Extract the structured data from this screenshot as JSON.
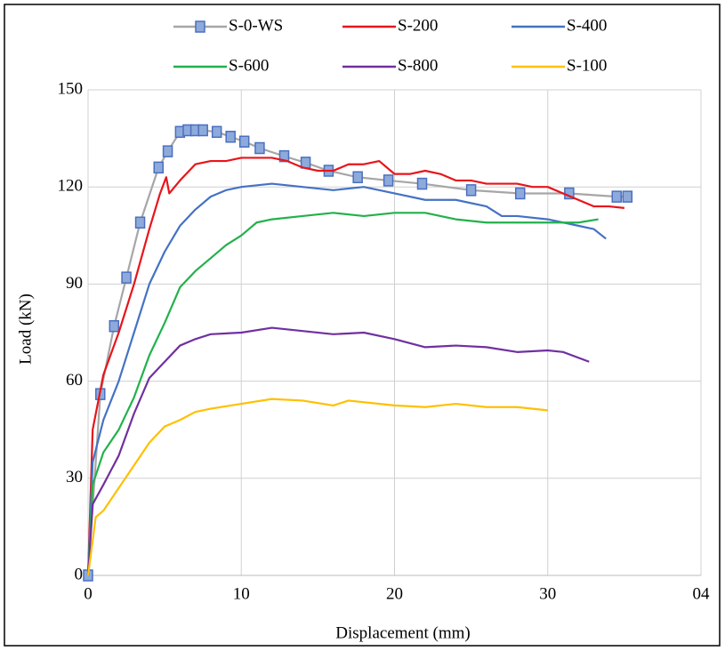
{
  "chart_data": {
    "type": "line",
    "xlabel": "Displacement (mm)",
    "ylabel": "Load (kN)",
    "xlim": [
      0,
      40
    ],
    "ylim": [
      0,
      150
    ],
    "xticks": [
      0,
      10,
      20,
      30,
      {
        "value": 40,
        "label": "04"
      }
    ],
    "yticks": [
      0,
      30,
      60,
      90,
      120,
      150
    ],
    "grid": true,
    "series": [
      {
        "name": "S-0-WS",
        "color": "#a6a6a6",
        "marker": "square",
        "marker_color": "#8eaadb",
        "x": [
          0,
          0.8,
          1.7,
          2.5,
          3.4,
          4.6,
          5.2,
          6,
          6.5,
          7,
          7.5,
          8.4,
          9.3,
          10.2,
          11.2,
          12.8,
          14.2,
          15.7,
          17.6,
          19.6,
          21.8,
          25,
          28.2,
          31.4,
          34.5,
          35.2
        ],
        "values": [
          0,
          56,
          77,
          92,
          109,
          126,
          131,
          137,
          137.5,
          137.5,
          137.5,
          137,
          135.5,
          134,
          132,
          129.5,
          127.5,
          125,
          123,
          122,
          121,
          119,
          118,
          118,
          117,
          117
        ]
      },
      {
        "name": "S-200",
        "color": "#e8141b",
        "x": [
          0,
          0.3,
          1,
          2,
          3,
          4,
          4.7,
          5.1,
          5.3,
          6,
          7,
          8,
          9,
          10,
          11,
          12,
          13,
          14,
          15,
          16,
          17,
          18,
          19,
          20,
          21,
          22,
          23,
          24,
          25,
          26,
          27,
          28,
          29,
          30,
          31,
          32,
          33,
          34,
          35
        ],
        "values": [
          0,
          45,
          62,
          75,
          90,
          107,
          118,
          123,
          118,
          122,
          127,
          128,
          128,
          129,
          129,
          129,
          128,
          126,
          125,
          125,
          127,
          127,
          128,
          124,
          124,
          125,
          124,
          122,
          122,
          121,
          121,
          121,
          120,
          120,
          118,
          116,
          114,
          114,
          113.5
        ]
      },
      {
        "name": "S-400",
        "color": "#4472c4",
        "x": [
          0,
          0.3,
          1,
          2,
          3,
          4,
          5,
          6,
          7,
          8,
          9,
          10,
          12,
          14,
          16,
          18,
          20,
          22,
          24,
          26,
          27,
          28,
          30,
          31,
          32,
          33,
          33.8
        ],
        "values": [
          0,
          35,
          48,
          60,
          75,
          90,
          100,
          108,
          113,
          117,
          119,
          120,
          121,
          120,
          119,
          120,
          118,
          116,
          116,
          114,
          111,
          111,
          110,
          109,
          108,
          107,
          104
        ]
      },
      {
        "name": "S-600",
        "color": "#22b14c",
        "x": [
          0,
          0.3,
          1,
          2,
          3,
          4,
          5,
          6,
          7,
          8,
          9,
          10,
          11,
          12,
          14,
          16,
          18,
          20,
          22,
          24,
          26,
          28,
          30,
          32,
          33.3
        ],
        "values": [
          0,
          28,
          38,
          45,
          55,
          68,
          78,
          89,
          94,
          98,
          102,
          105,
          109,
          110,
          111,
          112,
          111,
          112,
          112,
          110,
          109,
          109,
          109,
          109,
          110
        ]
      },
      {
        "name": "S-800",
        "color": "#7030a0",
        "x": [
          0,
          0.3,
          1,
          2,
          3,
          4,
          5,
          6,
          7,
          8,
          10,
          12,
          14,
          16,
          18,
          20,
          22,
          24,
          26,
          28,
          30,
          31,
          32.7
        ],
        "values": [
          0,
          22,
          28,
          37,
          50,
          61,
          66,
          71,
          73,
          74.5,
          75,
          76.5,
          75.5,
          74.5,
          75,
          73,
          70.5,
          71,
          70.5,
          69,
          69.5,
          69,
          66
        ]
      },
      {
        "name": "S-100",
        "color": "#ffc000",
        "x": [
          0,
          0.5,
          1,
          2,
          3,
          4,
          5,
          6,
          7,
          8,
          10,
          12,
          14,
          16,
          17,
          20,
          22,
          24,
          26,
          28,
          30
        ],
        "values": [
          0,
          18,
          20,
          27,
          34,
          41,
          46,
          48,
          50.5,
          51.5,
          53,
          54.5,
          54,
          52.5,
          54,
          52.5,
          52,
          53,
          52,
          52,
          51
        ]
      }
    ]
  }
}
